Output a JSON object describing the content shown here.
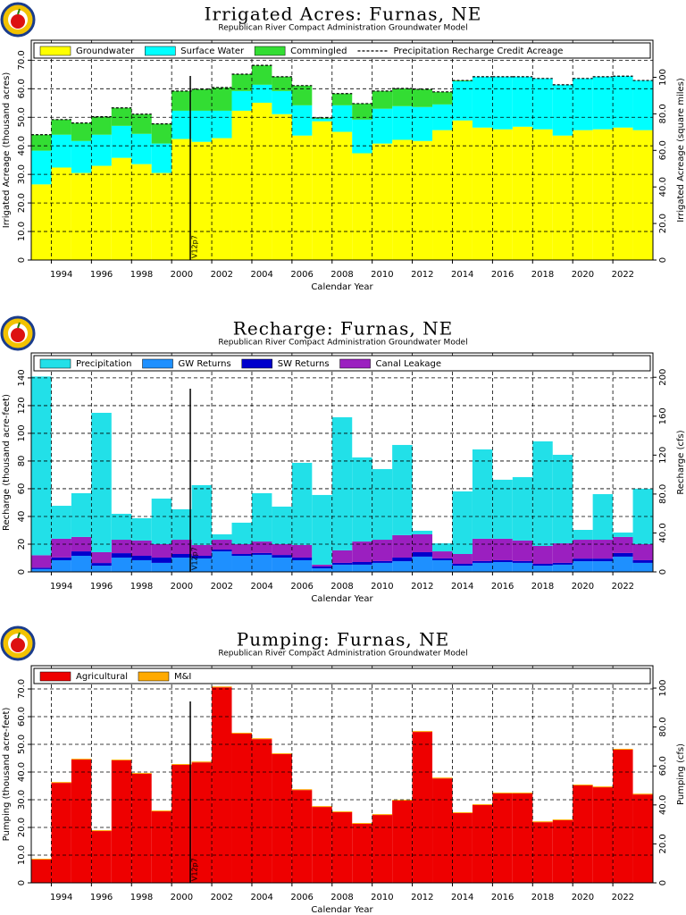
{
  "chart_data": [
    {
      "type": "bar",
      "stacked": true,
      "title": "Irrigated Acres: Furnas, NE",
      "subtitle": "Republican River Compact Administration Groundwater Model",
      "xlabel": "Calendar Year",
      "ylabel": "Irrigated Acreage (thousand acres)",
      "y2label": "Irrigated Acreage (square miles)",
      "x": [
        1993,
        1994,
        1995,
        1996,
        1997,
        1998,
        1999,
        2000,
        2001,
        2002,
        2003,
        2004,
        2005,
        2006,
        2007,
        2008,
        2009,
        2010,
        2011,
        2012,
        2013,
        2014,
        2015,
        2016,
        2017,
        2018,
        2019,
        2020,
        2021,
        2022,
        2023
      ],
      "xlim": [
        1993,
        2024
      ],
      "xticks": [
        1994,
        1996,
        1998,
        2000,
        2002,
        2004,
        2006,
        2008,
        2010,
        2012,
        2014,
        2016,
        2018,
        2020,
        2022
      ],
      "ylim": [
        0,
        77
      ],
      "yticks": [
        0,
        {
          "value": 10,
          "label": "10.0"
        },
        {
          "value": 20,
          "label": "20.0"
        },
        {
          "value": 30,
          "label": "30.0"
        },
        {
          "value": 40,
          "label": "40.0"
        },
        {
          "value": 50,
          "label": "50.0"
        },
        {
          "value": 60,
          "label": "60.0"
        },
        {
          "value": 70,
          "label": "70.0"
        }
      ],
      "y2lim": [
        0,
        120.3
      ],
      "y2ticks": [
        0,
        {
          "value": 20,
          "label": "20.0"
        },
        {
          "value": 40,
          "label": "40.0"
        },
        {
          "value": 60,
          "label": "60.0"
        },
        {
          "value": 80,
          "label": "80.0"
        },
        100
      ],
      "grid": true,
      "legend": "top",
      "annotation": {
        "text": "V12p7",
        "x": 2000.93
      },
      "series": [
        {
          "name": "Groundwater",
          "color": "#ffff00",
          "values": [
            26.5,
            32.4,
            30.5,
            33,
            35.8,
            33.6,
            30.5,
            42.4,
            41.4,
            42.7,
            52.3,
            55.1,
            51.1,
            43.6,
            48.6,
            44.9,
            37.4,
            40.8,
            42.1,
            41.7,
            45.5,
            48.9,
            46.4,
            45.8,
            46.7,
            45.8,
            43.6,
            45.5,
            45.8,
            46.4,
            45.5
          ]
        },
        {
          "name": "Surface Water",
          "color": "#00ffff",
          "values": [
            11.8,
            11.5,
            11.2,
            10.9,
            11.2,
            10.6,
            10.3,
            9.9,
            10.9,
            9.6,
            6.9,
            6.3,
            8.1,
            10.6,
            0.9,
            9.3,
            11.8,
            12.2,
            11.8,
            11.9,
            9,
            13.7,
            17.8,
            18.4,
            17.5,
            17.8,
            17.8,
            18.1,
            18.4,
            18,
            17.4
          ]
        },
        {
          "name": "Commingled",
          "color": "#33dd33",
          "values": [
            5.6,
            5.3,
            6.3,
            6.3,
            6.3,
            6.9,
            6.9,
            6.9,
            7.5,
            8.1,
            5.9,
            6.8,
            5,
            6.9,
            0.3,
            4.1,
            5.6,
            6.2,
            6.2,
            6.2,
            4.4,
            0.3,
            0,
            0,
            0,
            0,
            0,
            0,
            0,
            0,
            0
          ]
        },
        {
          "name": "Precipitation Recharge Credit Acreage",
          "color": "#000000",
          "kind": "line",
          "values": [
            43.9,
            49.2,
            48,
            50.2,
            53.3,
            51.1,
            47.7,
            59.2,
            59.8,
            60.4,
            65.1,
            68.2,
            64.2,
            61.1,
            49.8,
            58.3,
            54.8,
            59.2,
            60.1,
            59.8,
            58.9,
            62.9,
            64.2,
            64.2,
            64.2,
            63.6,
            61.4,
            63.6,
            64.2,
            64.4,
            62.9
          ]
        }
      ]
    },
    {
      "type": "bar",
      "stacked": true,
      "title": "Recharge: Furnas, NE",
      "subtitle": "Republican River Compact Administration Groundwater Model",
      "xlabel": "Calendar Year",
      "ylabel": "Recharge (thousand acre-feet)",
      "y2label": "Recharge (cfs)",
      "x": [
        1993,
        1994,
        1995,
        1996,
        1997,
        1998,
        1999,
        2000,
        2001,
        2002,
        2003,
        2004,
        2005,
        2006,
        2007,
        2008,
        2009,
        2010,
        2011,
        2012,
        2013,
        2014,
        2015,
        2016,
        2017,
        2018,
        2019,
        2020,
        2021,
        2022,
        2023
      ],
      "xlim": [
        1993,
        2024
      ],
      "xticks": [
        1994,
        1996,
        1998,
        2000,
        2002,
        2004,
        2006,
        2008,
        2010,
        2012,
        2014,
        2016,
        2018,
        2020,
        2022
      ],
      "ylim": [
        0,
        158
      ],
      "yticks": [
        0,
        20,
        40,
        60,
        80,
        100,
        120,
        140
      ],
      "y2lim": [
        0,
        225
      ],
      "y2ticks": [
        0,
        {
          "value": 40,
          "label": "40.0"
        },
        {
          "value": 80,
          "label": "80.0"
        },
        120,
        160,
        200
      ],
      "grid": true,
      "legend": "top",
      "annotation": {
        "text": "V12p7",
        "x": 2000.93
      },
      "series": [
        {
          "name": "GW Returns",
          "color": "#1e90ff",
          "values": [
            2,
            8.4,
            11.6,
            4.5,
            10.3,
            8.4,
            6.5,
            10.3,
            9.7,
            14.8,
            11.6,
            12.3,
            10.3,
            8.4,
            2.6,
            5.2,
            5.2,
            6.5,
            7.7,
            11,
            8.4,
            4.5,
            6.5,
            7.1,
            6.5,
            4.5,
            5.2,
            7.7,
            7.7,
            11,
            6.5
          ]
        },
        {
          "name": "SW Returns",
          "color": "#0000cc",
          "values": [
            1,
            2,
            3.2,
            1.9,
            3.2,
            3.2,
            3.8,
            2.6,
            1.9,
            1.3,
            1.3,
            1.3,
            1.9,
            1.9,
            1.3,
            1.3,
            1.9,
            1.3,
            2.6,
            3.2,
            1.3,
            1.3,
            1.3,
            1.3,
            1.3,
            1.3,
            1.3,
            1.9,
            1.9,
            2.6,
            1.9
          ]
        },
        {
          "name": "Canal Leakage",
          "color": "#9b1fc0",
          "values": [
            9,
            13.5,
            10.4,
            7.8,
            9.7,
            11,
            9.7,
            10.3,
            7.8,
            7.1,
            7.1,
            8.3,
            7.8,
            9.1,
            1.3,
            9,
            14.8,
            15.4,
            16.2,
            12.9,
            5.1,
            7.1,
            16.1,
            15.5,
            14.8,
            12.9,
            14.1,
            13.6,
            13.6,
            11.6,
            11.6
          ]
        },
        {
          "name": "Precipitation",
          "color": "#22e0e8",
          "values": [
            129,
            23.8,
            31.6,
            100.6,
            18.7,
            16.1,
            32.9,
            22,
            43.2,
            3.9,
            15.5,
            34.9,
            27.1,
            59.3,
            50.3,
            96.1,
            60.7,
            51,
            65.1,
            2.6,
            5.8,
            45.2,
            64.5,
            42.6,
            45.8,
            75.5,
            63.9,
            7.1,
            32.9,
            3.2,
            40
          ]
        }
      ],
      "legend_order": [
        3,
        0,
        1,
        2
      ]
    },
    {
      "type": "bar",
      "stacked": true,
      "title": "Pumping: Furnas, NE",
      "subtitle": "Republican River Compact Administration Groundwater Model",
      "xlabel": "Calendar Year",
      "ylabel": "Pumping (thousand acre-feet)",
      "y2label": "Pumping (cfs)",
      "x": [
        1993,
        1994,
        1995,
        1996,
        1997,
        1998,
        1999,
        2000,
        2001,
        2002,
        2003,
        2004,
        2005,
        2006,
        2007,
        2008,
        2009,
        2010,
        2011,
        2012,
        2013,
        2014,
        2015,
        2016,
        2017,
        2018,
        2019,
        2020,
        2021,
        2022,
        2023
      ],
      "xlim": [
        1993,
        2024
      ],
      "xticks": [
        1994,
        1996,
        1998,
        2000,
        2002,
        2004,
        2006,
        2008,
        2010,
        2012,
        2014,
        2016,
        2018,
        2020,
        2022
      ],
      "ylim": [
        0,
        78.4
      ],
      "yticks": [
        0,
        {
          "value": 10,
          "label": "10.0"
        },
        {
          "value": 20,
          "label": "20.0"
        },
        {
          "value": 30,
          "label": "30.0"
        },
        {
          "value": 40,
          "label": "40.0"
        },
        {
          "value": 50,
          "label": "50.0"
        },
        {
          "value": 60,
          "label": "60.0"
        },
        {
          "value": 70,
          "label": "70.0"
        }
      ],
      "y2lim": [
        0,
        111.5
      ],
      "y2ticks": [
        0,
        {
          "value": 20,
          "label": "20.0"
        },
        {
          "value": 40,
          "label": "40.0"
        },
        {
          "value": 60,
          "label": "60.0"
        },
        {
          "value": 80,
          "label": "80.0"
        },
        100
      ],
      "grid": true,
      "legend": "top",
      "annotation": {
        "text": "V12p7",
        "x": 2000.93
      },
      "series": [
        {
          "name": "Agricultural",
          "color": "#ee0000",
          "values": [
            8.4,
            36.1,
            44.5,
            18.7,
            44.2,
            39.4,
            25.8,
            42.6,
            43.5,
            70.6,
            53.9,
            51.9,
            46.5,
            33.5,
            27.4,
            25.5,
            21.3,
            24.5,
            29.7,
            54.5,
            37.7,
            25.2,
            28.1,
            32.3,
            32.3,
            21.9,
            22.6,
            35.2,
            34.5,
            48.1,
            31.9
          ]
        },
        {
          "name": "M&I",
          "color": "#ffaa00",
          "values": [
            0.3,
            0.3,
            0.3,
            0.3,
            0.3,
            0.3,
            0.3,
            0.3,
            0.3,
            0.3,
            0.3,
            0.3,
            0.3,
            0.3,
            0.3,
            0.3,
            0.3,
            0.3,
            0.3,
            0.3,
            0.3,
            0.3,
            0.3,
            0.3,
            0.3,
            0.3,
            0.3,
            0.3,
            0.3,
            0.3,
            0.3
          ]
        }
      ]
    }
  ]
}
